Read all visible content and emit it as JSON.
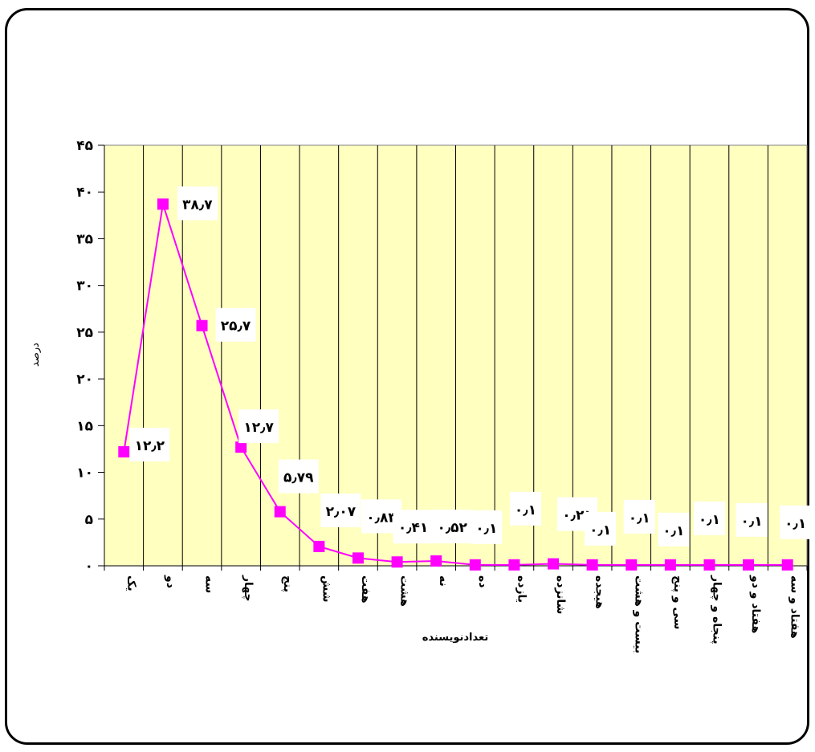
{
  "chart_data": {
    "type": "line",
    "xlabel": "تعدادنویسنده",
    "ylabel": "درصد",
    "ylim": [
      0,
      45
    ],
    "yticks": [
      0,
      5,
      10,
      15,
      20,
      25,
      30,
      35,
      40,
      45
    ],
    "ytick_labels": [
      "۰",
      "۵",
      "۱۰",
      "۱۵",
      "۲۰",
      "۲۵",
      "۳۰",
      "۳۵",
      "۴۰",
      "۴۵"
    ],
    "grid": "vertical",
    "categories": [
      "یک",
      "دو",
      "سه",
      "چهار",
      "پنج",
      "شش",
      "هفت",
      "هشت",
      "نه",
      "ده",
      "یازده",
      "شانزده",
      "هیجده",
      "بیست و هشت",
      "سی و پنج",
      "پنجاه و چهار",
      "هفتاد و دو",
      "هفتاد و سه"
    ],
    "series": [
      {
        "values": [
          12.2,
          38.7,
          25.7,
          12.7,
          5.79,
          2.07,
          0.83,
          0.41,
          0.52,
          0.1,
          0.1,
          0.21,
          0.1,
          0.1,
          0.1,
          0.1,
          0.1,
          0.1
        ],
        "data_labels": [
          "۱۲٫۲",
          "۳۸٫۷",
          "۲۵٫۷",
          "۱۲٫۷",
          "۵٫۷۹",
          "۲٫۰۷",
          "۰٫۸۳",
          "۰٫۴۱",
          "۰٫۵۲",
          "۰٫۱",
          "۰٫۱",
          "۰٫۲۱",
          "۰٫۱",
          "۰٫۱",
          "۰٫۱",
          "۰٫۱",
          "۰٫۱",
          "۰٫۱"
        ],
        "color": "#ff00ff"
      }
    ],
    "plot_background": "#ffffc0",
    "gridline_color": "#000000"
  }
}
